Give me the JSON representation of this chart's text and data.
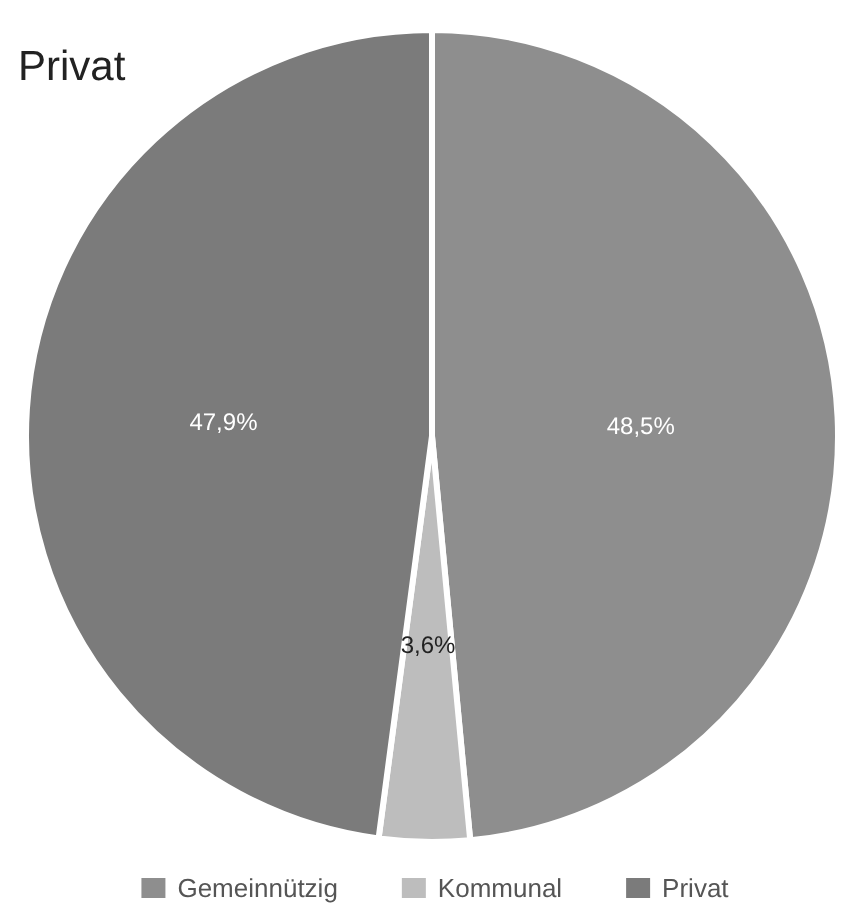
{
  "chart_data": {
    "type": "pie",
    "title": "Privat",
    "categories": [
      "Gemeinnützig",
      "Kommunal",
      "Privat"
    ],
    "values": [
      48.5,
      3.6,
      47.9
    ],
    "colors": [
      "#8e8e8e",
      "#bdbdbd",
      "#7b7b7b"
    ],
    "value_labels": [
      "48,5%",
      "3,6%",
      "47,9%"
    ],
    "legend": "bottom"
  }
}
